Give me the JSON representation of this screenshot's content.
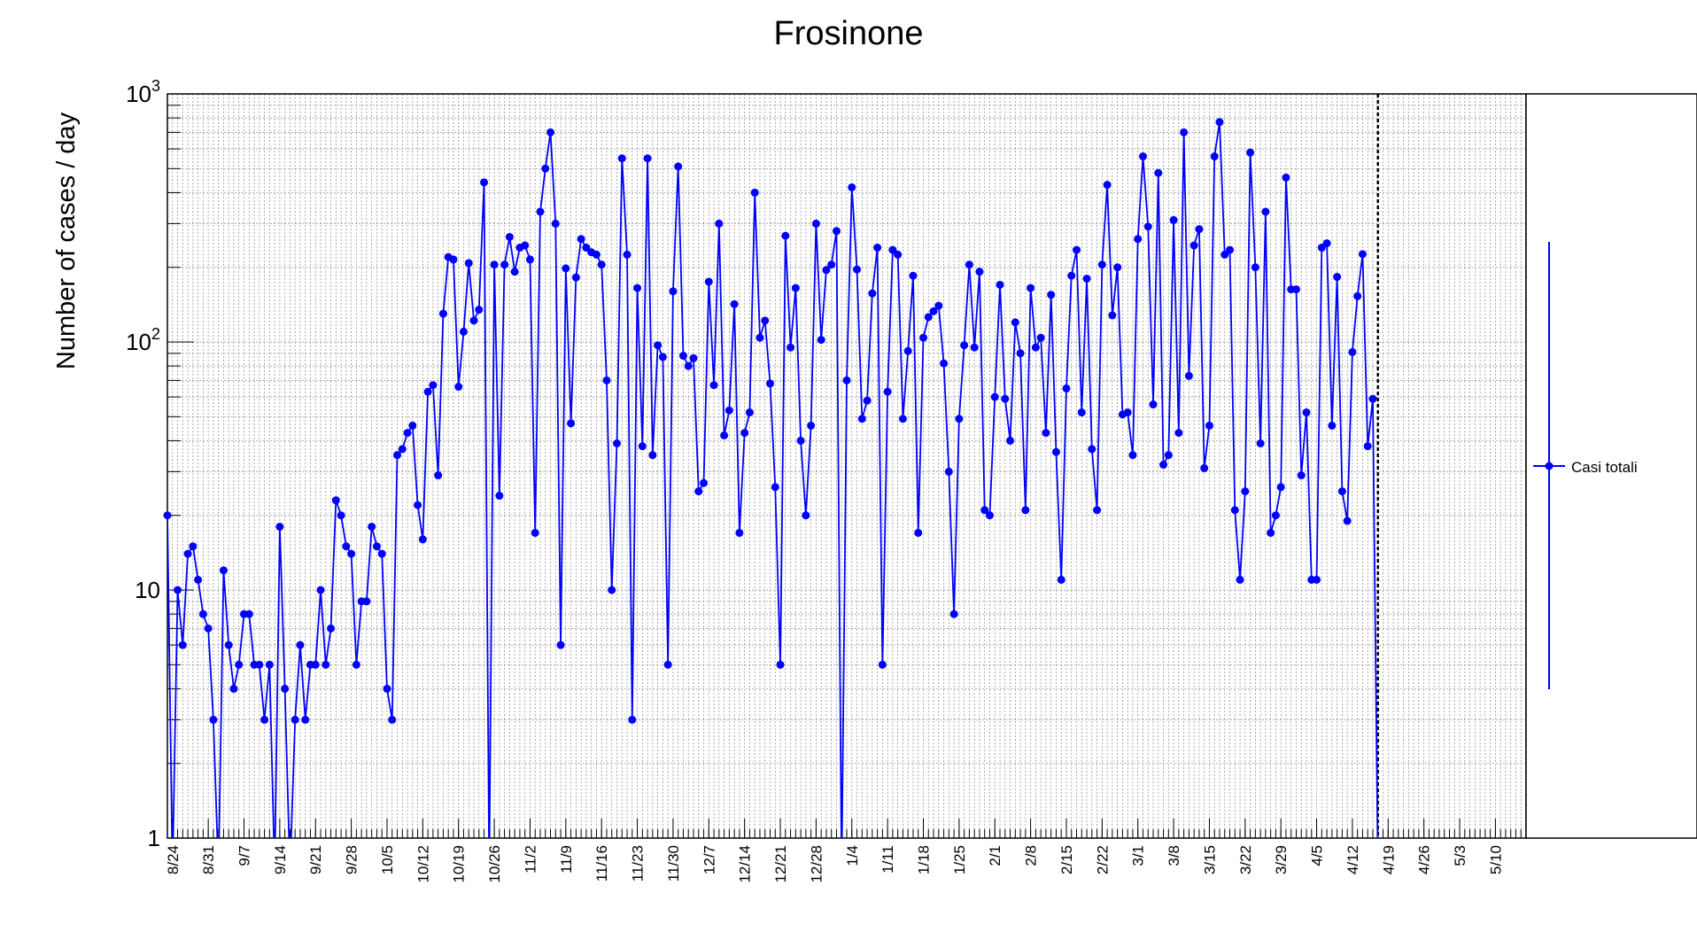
{
  "chart_data": {
    "type": "line",
    "title": "Frosinone",
    "ylabel": "Number of cases / day",
    "xlabel": "",
    "yscale": "log",
    "ylim": [
      1,
      1000
    ],
    "ytick_labels": [
      "1",
      "10",
      "10²",
      "10³"
    ],
    "x_tick_labels": [
      "8/24",
      "8/31",
      "9/7",
      "9/14",
      "9/21",
      "9/28",
      "10/5",
      "10/12",
      "10/19",
      "10/26",
      "11/2",
      "11/9",
      "11/16",
      "11/23",
      "11/30",
      "12/7",
      "12/14",
      "12/21",
      "12/28",
      "1/4",
      "1/11",
      "1/18",
      "1/25",
      "2/1",
      "2/8",
      "2/15",
      "2/22",
      "3/1",
      "3/8",
      "3/15",
      "3/22",
      "3/29",
      "4/5",
      "4/12",
      "4/19",
      "4/26",
      "5/3",
      "5/10"
    ],
    "x_start": "8/23",
    "x_end": "5/16",
    "grid": true,
    "marker_line_date": "4/17",
    "legend": {
      "position": "right",
      "entries": [
        "Casi totali"
      ]
    },
    "series": [
      {
        "name": "Casi totali",
        "color": "#0000ff",
        "values": [
          20,
          0,
          10,
          6,
          14,
          15,
          11,
          8,
          7,
          3,
          0,
          12,
          6,
          4,
          5,
          8,
          8,
          5,
          5,
          3,
          5,
          0,
          18,
          4,
          0,
          3,
          6,
          3,
          5,
          5,
          10,
          5,
          7,
          23,
          20,
          15,
          14,
          5,
          9,
          9,
          18,
          15,
          14,
          4,
          3,
          35,
          37,
          43,
          46,
          22,
          16,
          63,
          67,
          29,
          130,
          220,
          215,
          66,
          110,
          208,
          122,
          135,
          440,
          0,
          205,
          24,
          205,
          265,
          192,
          240,
          245,
          215,
          17,
          335,
          500,
          700,
          300,
          6,
          198,
          47,
          182,
          260,
          240,
          230,
          225,
          205,
          70,
          10,
          39,
          550,
          225,
          3,
          165,
          38,
          550,
          35,
          97,
          87,
          5,
          160,
          510,
          88,
          80,
          86,
          25,
          27,
          175,
          67,
          300,
          42,
          53,
          142,
          17,
          43,
          52,
          400,
          104,
          122,
          68,
          26,
          5,
          268,
          95,
          165,
          40,
          20,
          46,
          300,
          102,
          195,
          205,
          280,
          0,
          70,
          420,
          196,
          49,
          58,
          157,
          240,
          5,
          63,
          235,
          225,
          49,
          92,
          185,
          17,
          104,
          126,
          133,
          140,
          82,
          30,
          8,
          49,
          97,
          205,
          95,
          192,
          21,
          20,
          60,
          170,
          59,
          40,
          120,
          90,
          21,
          165,
          95,
          104,
          43,
          155,
          36,
          11,
          65,
          185,
          235,
          52,
          180,
          37,
          21,
          205,
          430,
          128,
          200,
          51,
          52,
          35,
          260,
          560,
          292,
          56,
          480,
          32,
          35,
          310,
          43,
          700,
          73,
          245,
          285,
          31,
          46,
          560,
          770,
          225,
          235,
          21,
          11,
          25,
          580,
          200,
          39,
          335,
          17,
          20,
          26,
          460,
          163,
          163,
          29,
          52,
          11,
          11,
          240,
          250,
          46,
          183,
          25,
          19,
          91,
          153,
          226,
          38,
          59,
          0
        ]
      }
    ]
  }
}
